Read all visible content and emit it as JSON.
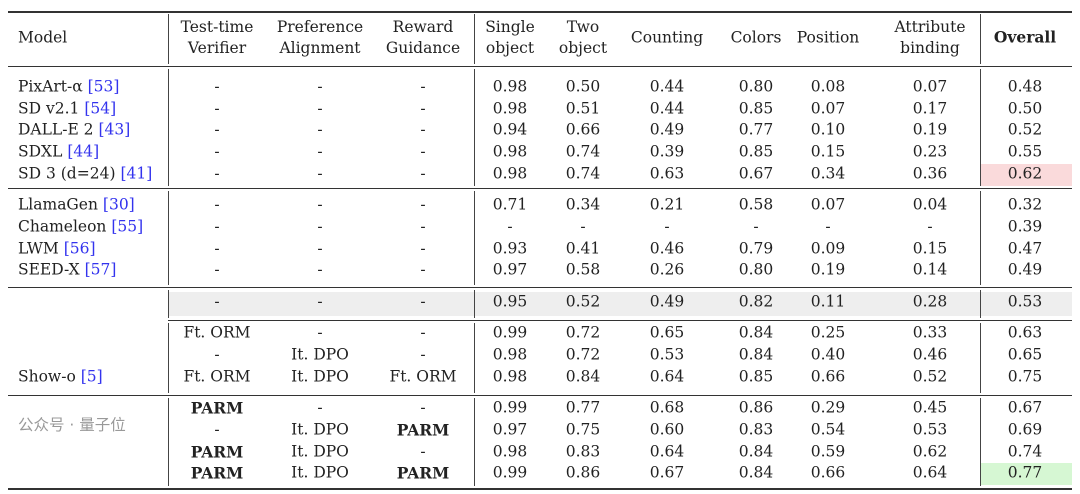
{
  "headers": [
    "Model",
    "Test-time\nVerifier",
    "Preference\nAlignment",
    "Reward\nGuidance",
    "Single\nobject",
    "Two\nobject",
    "Counting",
    "Colors",
    "Position",
    "Attribute\nbinding",
    "Overall"
  ],
  "highlight_colors": {
    "sd3_overall": "#fadadb",
    "best_overall": "#d6f7d3",
    "baseline_row": "#eeeeee",
    "citation": "#3333ee"
  },
  "groups": [
    {
      "rows": [
        {
          "model": "PixArt-α",
          "ref": "[53]",
          "cells": [
            "-",
            "-",
            "-",
            "0.98",
            "0.50",
            "0.44",
            "0.80",
            "0.08",
            "0.07",
            "0.48"
          ]
        },
        {
          "model": "SD v2.1",
          "ref": "[54]",
          "cells": [
            "-",
            "-",
            "-",
            "0.98",
            "0.51",
            "0.44",
            "0.85",
            "0.07",
            "0.17",
            "0.50"
          ]
        },
        {
          "model": "DALL-E 2",
          "ref": "[43]",
          "cells": [
            "-",
            "-",
            "-",
            "0.94",
            "0.66",
            "0.49",
            "0.77",
            "0.10",
            "0.19",
            "0.52"
          ]
        },
        {
          "model": "SDXL",
          "ref": "[44]",
          "cells": [
            "-",
            "-",
            "-",
            "0.98",
            "0.74",
            "0.39",
            "0.85",
            "0.15",
            "0.23",
            "0.55"
          ]
        },
        {
          "model": "SD 3 (d=24)",
          "ref": "[41]",
          "cells": [
            "-",
            "-",
            "-",
            "0.98",
            "0.74",
            "0.63",
            "0.67",
            "0.34",
            "0.36",
            "0.62"
          ],
          "overall_highlight": "sd3_overall"
        }
      ]
    },
    {
      "rows": [
        {
          "model": "LlamaGen",
          "ref": "[30]",
          "cells": [
            "-",
            "-",
            "-",
            "0.71",
            "0.34",
            "0.21",
            "0.58",
            "0.07",
            "0.04",
            "0.32"
          ]
        },
        {
          "model": "Chameleon",
          "ref": "[55]",
          "cells": [
            "-",
            "-",
            "-",
            "-",
            "-",
            "-",
            "-",
            "-",
            "-",
            "0.39"
          ]
        },
        {
          "model": "LWM",
          "ref": "[56]",
          "cells": [
            "-",
            "-",
            "-",
            "0.93",
            "0.41",
            "0.46",
            "0.79",
            "0.09",
            "0.15",
            "0.47"
          ]
        },
        {
          "model": "SEED-X",
          "ref": "[57]",
          "cells": [
            "-",
            "-",
            "-",
            "0.97",
            "0.58",
            "0.26",
            "0.80",
            "0.19",
            "0.14",
            "0.49"
          ]
        }
      ]
    }
  ],
  "showo": {
    "model": "Show-o",
    "ref": "[5]",
    "baseline": [
      "-",
      "-",
      "-",
      "0.95",
      "0.52",
      "0.49",
      "0.82",
      "0.11",
      "0.28",
      "0.53"
    ],
    "block1": [
      [
        "Ft. ORM",
        "-",
        "-",
        "0.99",
        "0.72",
        "0.65",
        "0.84",
        "0.25",
        "0.33",
        "0.63"
      ],
      [
        "-",
        "It. DPO",
        "-",
        "0.98",
        "0.72",
        "0.53",
        "0.84",
        "0.40",
        "0.46",
        "0.65"
      ],
      [
        "Ft. ORM",
        "It. DPO",
        "Ft. ORM",
        "0.98",
        "0.84",
        "0.64",
        "0.85",
        "0.66",
        "0.52",
        "0.75"
      ]
    ],
    "block2": [
      [
        "PARM",
        "-",
        "-",
        "0.99",
        "0.77",
        "0.68",
        "0.86",
        "0.29",
        "0.45",
        "0.67"
      ],
      [
        "-",
        "It. DPO",
        "PARM",
        "0.97",
        "0.75",
        "0.60",
        "0.83",
        "0.54",
        "0.53",
        "0.69"
      ],
      [
        "PARM",
        "It. DPO",
        "-",
        "0.98",
        "0.83",
        "0.64",
        "0.84",
        "0.59",
        "0.62",
        "0.74"
      ],
      [
        "PARM",
        "It. DPO",
        "PARM",
        "0.99",
        "0.86",
        "0.67",
        "0.84",
        "0.66",
        "0.64",
        "0.77"
      ]
    ]
  },
  "watermark": "公众号 · 量子位"
}
